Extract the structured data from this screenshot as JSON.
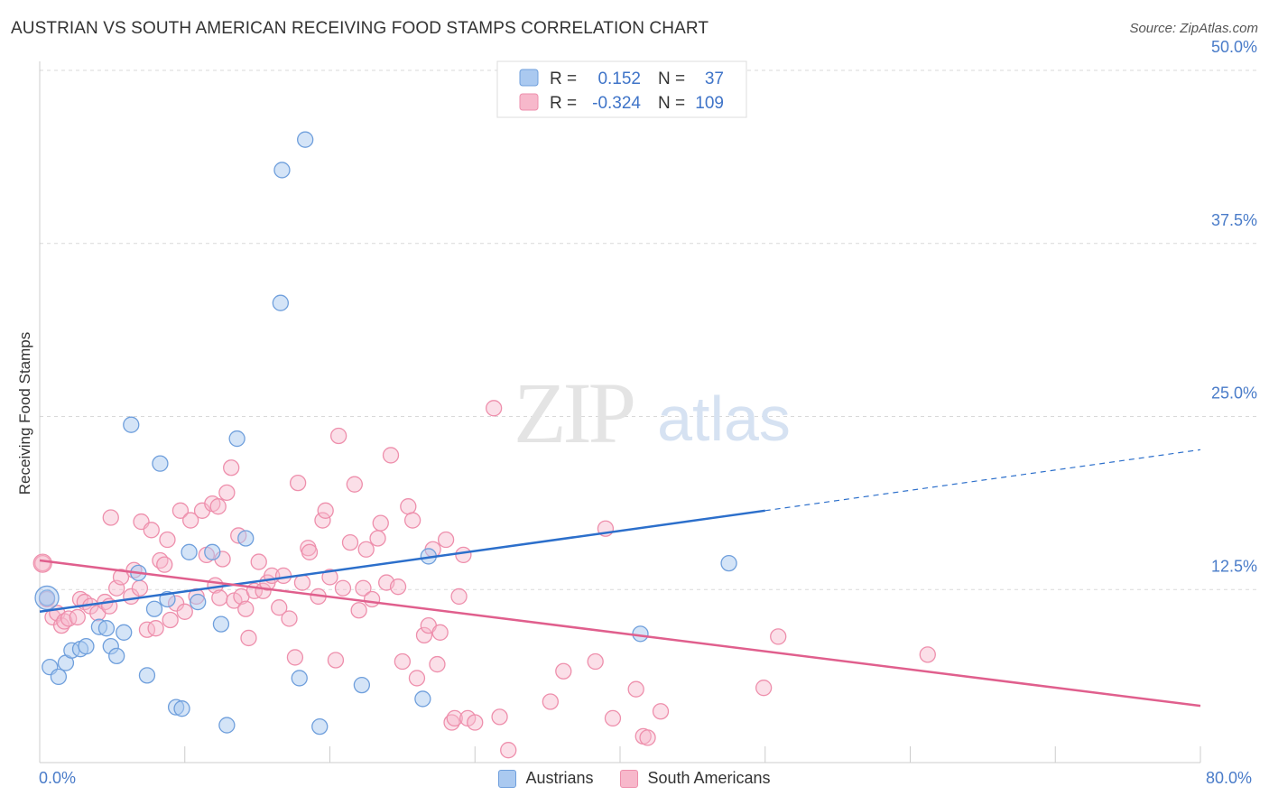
{
  "title": "AUSTRIAN VS SOUTH AMERICAN RECEIVING FOOD STAMPS CORRELATION CHART",
  "source": "Source: ZipAtlas.com",
  "watermark": {
    "zip": "ZIP",
    "atlas": "atlas"
  },
  "colors": {
    "austrians_fill": "#aac9f0",
    "austrians_stroke": "#6f9fdc",
    "austrians_line": "#2c6fcb",
    "south_fill": "#f7b8cb",
    "south_stroke": "#ee8fac",
    "south_line": "#e05f8d",
    "axis_label": "#4a7cc9",
    "grid": "#d9d9d9"
  },
  "legend_top": {
    "rows": [
      {
        "r_label": "R =",
        "r_value": "0.152",
        "n_label": "N =",
        "n_value": "37"
      },
      {
        "r_label": "R =",
        "r_value": "-0.324",
        "n_label": "N =",
        "n_value": "109"
      }
    ]
  },
  "legend_bottom": {
    "austrians": "Austrians",
    "south": "South Americans"
  },
  "chart_data": {
    "type": "scatter",
    "title": "AUSTRIAN VS SOUTH AMERICAN RECEIVING FOOD STAMPS CORRELATION CHART",
    "xlabel": "",
    "ylabel": "Receiving Food Stamps",
    "xlim": [
      0,
      80
    ],
    "ylim": [
      0,
      50
    ],
    "x_tick_labels": [
      "0.0%",
      "80.0%"
    ],
    "y_tick_labels": [
      "12.5%",
      "25.0%",
      "37.5%",
      "50.0%"
    ],
    "y_ticks": [
      12.5,
      25.0,
      37.5,
      50.0
    ],
    "grid": true,
    "legend_placement": "top-center",
    "series": [
      {
        "name": "Austrians",
        "r": 0.152,
        "n": 37,
        "trend": {
          "x0": 0,
          "y0": 10.9,
          "x1": 50,
          "y1": 18.2,
          "dashed_to_x": 80,
          "dashed_y": 22.6
        },
        "points": [
          [
            0.5,
            11.9
          ],
          [
            0.7,
            6.9
          ],
          [
            1.3,
            6.2
          ],
          [
            1.8,
            7.2
          ],
          [
            2.2,
            8.1
          ],
          [
            2.8,
            8.2
          ],
          [
            3.2,
            8.4
          ],
          [
            4.1,
            9.8
          ],
          [
            4.6,
            9.7
          ],
          [
            4.9,
            8.4
          ],
          [
            5.3,
            7.7
          ],
          [
            5.8,
            9.4
          ],
          [
            6.3,
            24.4
          ],
          [
            6.8,
            13.7
          ],
          [
            7.4,
            6.3
          ],
          [
            7.9,
            11.1
          ],
          [
            8.3,
            21.6
          ],
          [
            8.8,
            11.8
          ],
          [
            9.4,
            4.0
          ],
          [
            9.8,
            3.9
          ],
          [
            10.3,
            15.2
          ],
          [
            10.9,
            11.6
          ],
          [
            11.9,
            15.2
          ],
          [
            12.5,
            10.0
          ],
          [
            12.9,
            2.7
          ],
          [
            13.6,
            23.4
          ],
          [
            14.2,
            16.2
          ],
          [
            16.7,
            42.8
          ],
          [
            16.6,
            33.2
          ],
          [
            17.9,
            6.1
          ],
          [
            18.3,
            45.0
          ],
          [
            19.3,
            2.6
          ],
          [
            22.2,
            5.6
          ],
          [
            26.4,
            4.6
          ],
          [
            26.8,
            14.9
          ],
          [
            41.4,
            9.3
          ],
          [
            47.5,
            14.4
          ]
        ]
      },
      {
        "name": "South Americans",
        "r": -0.324,
        "n": 109,
        "trend": {
          "x0": 0,
          "y0": 14.6,
          "x1": 80,
          "y1": 4.1
        },
        "points": [
          [
            0.2,
            14.4
          ],
          [
            0.5,
            11.8
          ],
          [
            0.9,
            10.5
          ],
          [
            1.2,
            10.8
          ],
          [
            1.5,
            9.9
          ],
          [
            1.7,
            10.2
          ],
          [
            2.0,
            10.4
          ],
          [
            2.6,
            10.5
          ],
          [
            2.8,
            11.8
          ],
          [
            3.1,
            11.6
          ],
          [
            3.5,
            11.3
          ],
          [
            4.0,
            10.8
          ],
          [
            4.5,
            11.6
          ],
          [
            4.8,
            11.3
          ],
          [
            4.9,
            17.7
          ],
          [
            5.3,
            12.6
          ],
          [
            5.6,
            13.4
          ],
          [
            6.3,
            12.0
          ],
          [
            6.5,
            13.9
          ],
          [
            6.9,
            12.6
          ],
          [
            7.0,
            17.4
          ],
          [
            7.4,
            9.6
          ],
          [
            7.7,
            16.8
          ],
          [
            8.0,
            9.7
          ],
          [
            8.3,
            14.6
          ],
          [
            8.6,
            14.3
          ],
          [
            8.8,
            16.1
          ],
          [
            9.0,
            10.3
          ],
          [
            9.4,
            11.5
          ],
          [
            9.7,
            18.2
          ],
          [
            10.0,
            10.9
          ],
          [
            10.4,
            17.5
          ],
          [
            10.8,
            12.0
          ],
          [
            11.2,
            18.2
          ],
          [
            11.5,
            15.0
          ],
          [
            11.9,
            18.7
          ],
          [
            12.1,
            12.8
          ],
          [
            12.3,
            18.5
          ],
          [
            12.4,
            11.9
          ],
          [
            12.9,
            19.5
          ],
          [
            13.2,
            21.3
          ],
          [
            13.4,
            11.7
          ],
          [
            13.7,
            16.4
          ],
          [
            13.9,
            12.0
          ],
          [
            14.2,
            11.1
          ],
          [
            14.4,
            9.0
          ],
          [
            14.8,
            12.4
          ],
          [
            15.1,
            14.5
          ],
          [
            15.4,
            12.4
          ],
          [
            15.7,
            13.0
          ],
          [
            16.0,
            13.5
          ],
          [
            16.5,
            11.2
          ],
          [
            16.8,
            13.5
          ],
          [
            17.2,
            10.4
          ],
          [
            17.6,
            7.6
          ],
          [
            17.8,
            20.2
          ],
          [
            18.1,
            13.0
          ],
          [
            18.5,
            15.5
          ],
          [
            19.2,
            12.0
          ],
          [
            19.5,
            17.5
          ],
          [
            19.7,
            18.2
          ],
          [
            20.0,
            13.4
          ],
          [
            20.4,
            7.4
          ],
          [
            20.6,
            23.6
          ],
          [
            20.9,
            12.6
          ],
          [
            21.4,
            15.9
          ],
          [
            21.7,
            20.1
          ],
          [
            22.0,
            11.0
          ],
          [
            22.3,
            12.6
          ],
          [
            22.5,
            15.4
          ],
          [
            22.9,
            11.8
          ],
          [
            23.3,
            16.2
          ],
          [
            23.5,
            17.3
          ],
          [
            23.9,
            13.0
          ],
          [
            24.2,
            22.2
          ],
          [
            24.7,
            12.7
          ],
          [
            25.0,
            7.3
          ],
          [
            25.4,
            18.5
          ],
          [
            25.7,
            17.5
          ],
          [
            26.0,
            6.1
          ],
          [
            26.5,
            9.2
          ],
          [
            26.8,
            9.9
          ],
          [
            27.1,
            15.4
          ],
          [
            27.4,
            7.1
          ],
          [
            27.6,
            9.4
          ],
          [
            28.0,
            16.1
          ],
          [
            28.4,
            2.9
          ],
          [
            28.6,
            3.2
          ],
          [
            28.9,
            12.0
          ],
          [
            29.2,
            15.0
          ],
          [
            29.5,
            3.2
          ],
          [
            30.0,
            2.9
          ],
          [
            31.3,
            25.6
          ],
          [
            31.7,
            3.3
          ],
          [
            32.3,
            0.9
          ],
          [
            35.2,
            4.4
          ],
          [
            36.1,
            6.6
          ],
          [
            38.3,
            7.3
          ],
          [
            39.0,
            16.9
          ],
          [
            41.1,
            5.3
          ],
          [
            41.6,
            1.9
          ],
          [
            41.9,
            1.8
          ],
          [
            42.8,
            3.7
          ],
          [
            49.9,
            5.4
          ],
          [
            50.9,
            9.1
          ],
          [
            61.2,
            7.8
          ],
          [
            39.5,
            3.2
          ],
          [
            18.6,
            15.2
          ],
          [
            12.6,
            14.7
          ]
        ]
      }
    ]
  }
}
